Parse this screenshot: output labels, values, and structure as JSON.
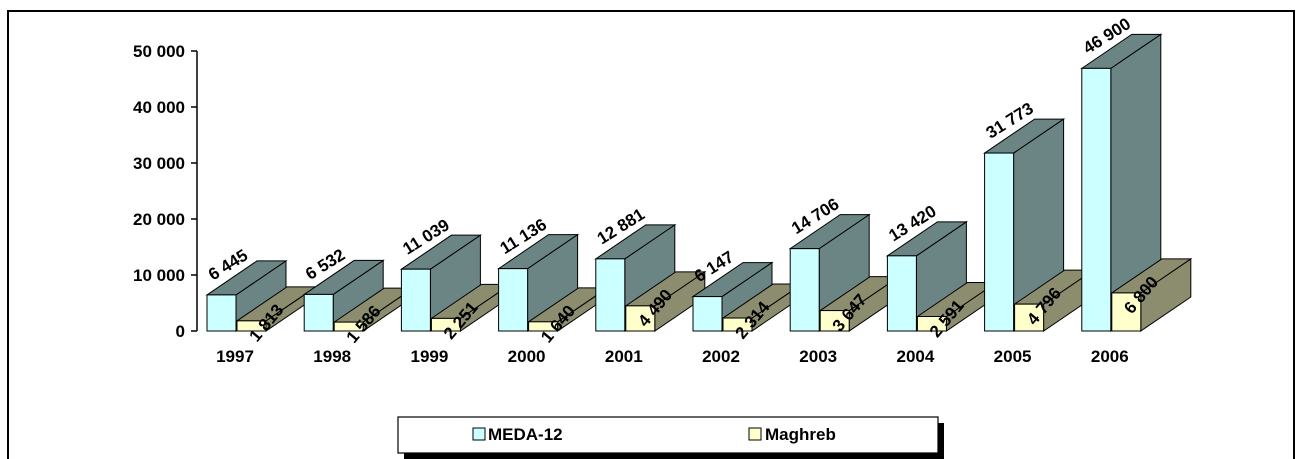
{
  "chart_data": {
    "type": "bar",
    "categories": [
      "1997",
      "1998",
      "1999",
      "2000",
      "2001",
      "2002",
      "2003",
      "2004",
      "2005",
      "2006"
    ],
    "series": [
      {
        "name": "MEDA-12",
        "color": "#ccffff",
        "side_color": "#6b8585",
        "values": [
          6445,
          6532,
          11039,
          11136,
          12881,
          6147,
          14706,
          13420,
          31773,
          46900
        ],
        "labels": [
          "6 445",
          "6 532",
          "11 039",
          "11 136",
          "12 881",
          "6 147",
          "14 706",
          "13 420",
          "31 773",
          "46 900"
        ]
      },
      {
        "name": "Maghreb",
        "color": "#ffffcc",
        "side_color": "#8c8c6e",
        "values": [
          1813,
          1586,
          2251,
          1640,
          4490,
          2314,
          3647,
          2591,
          4796,
          6800
        ],
        "labels": [
          "1 813",
          "1 586",
          "2 251",
          "1 640",
          "4 490",
          "2 314",
          "3 647",
          "2 591",
          "4 796",
          "6 800"
        ]
      }
    ],
    "yticks": [
      0,
      10000,
      20000,
      30000,
      40000,
      50000
    ],
    "ytick_labels": [
      "0",
      "10 000",
      "20 000",
      "30 000",
      "40 000",
      "50 000"
    ],
    "ylim": [
      0,
      50000
    ],
    "grid": false,
    "legend_position": "bottom"
  }
}
